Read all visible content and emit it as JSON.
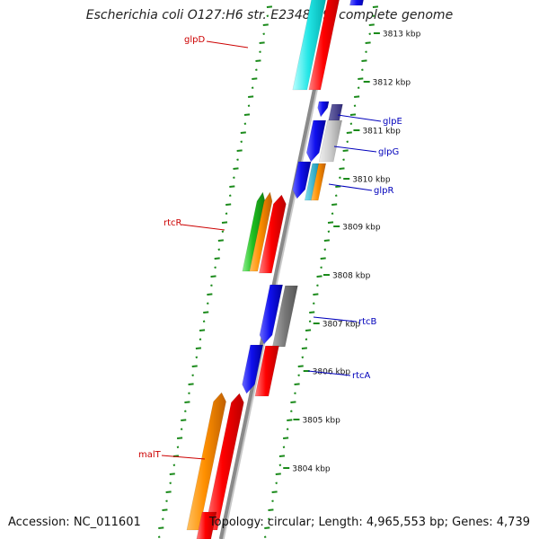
{
  "map": {
    "title": "Escherichia coli O127:H6 str. E2348/69, complete genome",
    "accession": "Accession: NC_011601",
    "summary": "Topology: circular; Length: 4,965,553 bp; Genes: 4,739",
    "colors": {
      "backbone": "#8a8a8a",
      "ticks": "#1a8a1a",
      "label_forward": "#cc0000",
      "label_reverse": "#0000bb"
    },
    "scale_labels": [
      "3813 kbp",
      "3812 kbp",
      "3811 kbp",
      "3810 kbp",
      "3809 kbp",
      "3808 kbp",
      "3807 kbp",
      "3806 kbp",
      "3805 kbp",
      "3804 kbp"
    ],
    "genes": [
      {
        "name": "glpD",
        "strand": "forward"
      },
      {
        "name": "glpE",
        "strand": "reverse"
      },
      {
        "name": "glpG",
        "strand": "reverse"
      },
      {
        "name": "glpR",
        "strand": "reverse"
      },
      {
        "name": "rtcR",
        "strand": "forward"
      },
      {
        "name": "rtcB",
        "strand": "reverse"
      },
      {
        "name": "rtcA",
        "strand": "reverse"
      },
      {
        "name": "malT",
        "strand": "forward"
      }
    ]
  }
}
